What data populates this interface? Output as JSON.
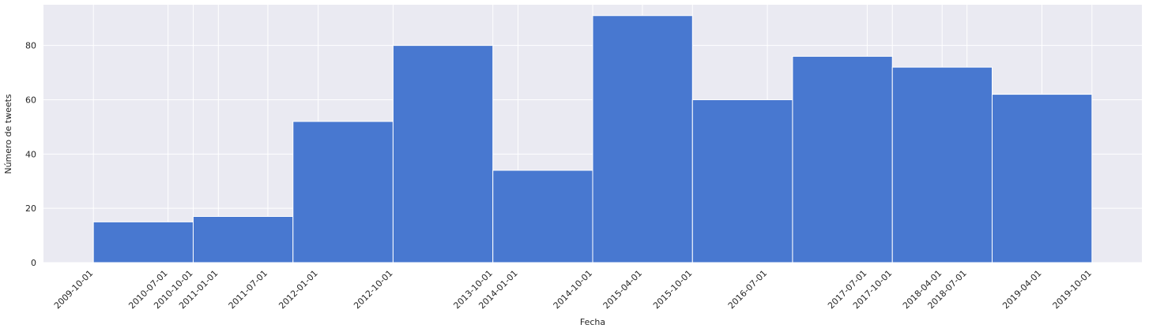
{
  "chart_data": {
    "type": "bar",
    "xlabel": "Fecha",
    "ylabel": "Número de tweets",
    "ylim": [
      0,
      95
    ],
    "yticks": [
      0,
      20,
      40,
      60,
      80
    ],
    "grid": true,
    "bin_edges": [
      "2009-10-01",
      "2010-10-01",
      "2011-10-01",
      "2012-10-01",
      "2013-10-01",
      "2014-10-01",
      "2015-10-01",
      "2016-10-01",
      "2017-10-01",
      "2018-10-01",
      "2019-10-01"
    ],
    "values": [
      15,
      17,
      52,
      80,
      34,
      91,
      60,
      76,
      72,
      62
    ],
    "xtick_dates": [
      "2009-10-01",
      "2010-07-01",
      "2010-10-01",
      "2011-01-01",
      "2011-07-01",
      "2012-01-01",
      "2012-10-01",
      "2013-10-01",
      "2014-01-01",
      "2014-10-01",
      "2015-04-01",
      "2015-10-01",
      "2016-07-01",
      "2017-07-01",
      "2017-10-01",
      "2018-04-01",
      "2018-07-01",
      "2019-04-01",
      "2019-10-01"
    ]
  },
  "colors": {
    "bar": "#4878d0",
    "plot_background": "#eaeaf2",
    "grid": "#ffffff"
  }
}
